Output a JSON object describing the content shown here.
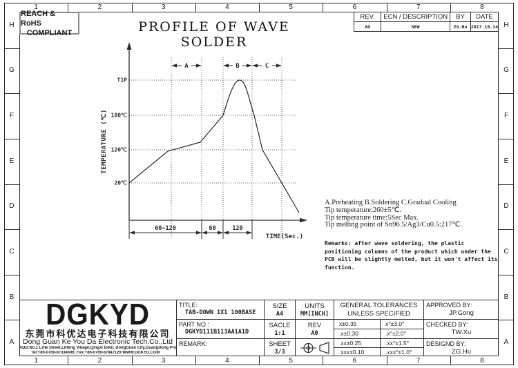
{
  "frame": {
    "column_labels": [
      "1",
      "2",
      "3",
      "4",
      "5",
      "6",
      "7",
      "8"
    ],
    "row_labels": [
      "H",
      "G",
      "F",
      "E",
      "D",
      "C",
      "B",
      "A"
    ]
  },
  "badge": {
    "line1": "REACH & RoHS",
    "line2": "COMPLIANT"
  },
  "drawing_title": "PROFILE OF WAVE SOLDER",
  "rev_table": {
    "headers": [
      "REV.",
      "ECN / DESCRIPTION",
      "BY",
      "DATE"
    ],
    "row": {
      "rev": "A0",
      "description": "NEW",
      "by": "ZG.Hu",
      "date": "2017.10.14"
    }
  },
  "chart_data": {
    "type": "line",
    "title": "PROFILE OF WAVE SOLDER",
    "xlabel": "TIME(Sec.)",
    "ylabel": "TEMPERATURE (℃)",
    "y_axis_labels": [
      {
        "label": "T1P",
        "value_c": 260
      },
      {
        "label": "180℃",
        "value_c": 180
      },
      {
        "label": "120℃",
        "value_c": 120
      },
      {
        "label": "20℃",
        "value_c": 20
      }
    ],
    "zones": [
      {
        "label": "A",
        "name": "Preheating",
        "duration_sec": "60~120"
      },
      {
        "label": "B",
        "name": "Soldering",
        "duration_sec": "60"
      },
      {
        "label": "C",
        "name": "Gradual Cooling",
        "duration_sec": "120"
      }
    ],
    "time_dimension_labels": [
      "60~120",
      "60",
      "120"
    ],
    "peak_temp_c": "260±5 (T1P)",
    "profile_points": [
      {
        "t_rel": 0.0,
        "temp_c": 20
      },
      {
        "t_rel": 0.23,
        "temp_c": 120
      },
      {
        "t_rel": 0.42,
        "temp_c": 133
      },
      {
        "t_rel": 0.55,
        "temp_c": 180
      },
      {
        "t_rel": 0.65,
        "temp_c": 260
      },
      {
        "t_rel": 0.74,
        "temp_c": 180
      },
      {
        "t_rel": 0.79,
        "temp_c": 120
      },
      {
        "t_rel": 1.0,
        "temp_c": 8
      }
    ],
    "grid": "dotted",
    "legend_position": "none"
  },
  "process_notes": {
    "text": "A.Preheating  B.Soldering  C.Gradual Cooling\nTip temperature:260±5℃.\nTip temperature time:5Sec Max.\nTip melting point of Sn96.5/Ag3/Cu0.5:217℃."
  },
  "remarks": {
    "text": "Remarks: after wave soldering, the plastic\npositioning columns of the product  which under the\nPCB will be slightly melted, but it won't affect its\nfunction."
  },
  "title_block": {
    "title_label": "TITLE:",
    "title_value": "TAB-DOWN 1X1 100BASE",
    "part_no_label": "PART NO.:",
    "part_no_value": "DGKYD111B113AA1A1D",
    "remark_label": "REMARK:",
    "size_label": "SIZE",
    "size_value": "A4",
    "scale_label": "SACLE",
    "scale_value": "1:1",
    "sheet_label": "SHEET",
    "sheet_value": "3/3",
    "units_label": "UNITS",
    "units_value": "MM[INCH]",
    "rev_label": "REV",
    "rev_value": "A0",
    "tolerances_header_line1": "GENERAL TOLERANCES",
    "tolerances_header_line2": "UNLESS SPECIFIED",
    "tolerances": [
      [
        "x±0.35",
        "x°±3.0°"
      ],
      [
        ".x±0.30",
        ".x°±2.0°"
      ],
      [
        ".xx±0.25",
        ".xx°±1.5°"
      ],
      [
        ".xxx±0.10",
        ".xxx°±1.0°"
      ]
    ],
    "approved_label": "APPROVED BY:",
    "approved_value": "JP.Gong",
    "checked_label": "CHECKED BY:",
    "checked_value": "TW.Xu",
    "designed_label": "DESIGND BY:",
    "designed_value": "ZG.Hu"
  },
  "logo_block": {
    "name": "DGKYD",
    "company_cn": "东莞市科优达电子科技有限公司",
    "company_en": "Dong Guan Ke You Da Electronic Tech.Co.,Ltd",
    "address": "ADD:No.1 LiHe Street,LiHeng Village,Qingxi town, DongGuan City,GuangDong Province",
    "contact": "Tel:+86-0769-87334606; Fax:+86-0769-87847129 WWW.DGKYD.COM"
  }
}
